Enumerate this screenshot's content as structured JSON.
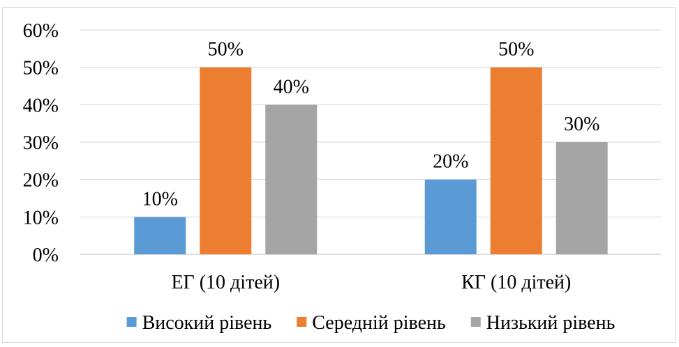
{
  "chart_data": {
    "type": "bar",
    "categories": [
      "ЕГ (10 дітей)",
      "КГ (10 дітей)"
    ],
    "series": [
      {
        "name": "Високий рівень",
        "values": [
          10,
          20
        ],
        "labels": [
          "10%",
          "20%"
        ],
        "color": "#5b9bd5"
      },
      {
        "name": "Середній рівень",
        "values": [
          50,
          50
        ],
        "labels": [
          "50%",
          "50%"
        ],
        "color": "#ed7d31"
      },
      {
        "name": "Низький рівень",
        "values": [
          40,
          30
        ],
        "labels": [
          "40%",
          "30%"
        ],
        "color": "#a5a5a5"
      }
    ],
    "ylim": [
      0,
      60
    ],
    "yticks": [
      0,
      10,
      20,
      30,
      40,
      50,
      60
    ],
    "ytick_labels": [
      "0%",
      "10%",
      "20%",
      "30%",
      "40%",
      "50%",
      "60%"
    ],
    "grid": true,
    "legend_position": "bottom",
    "title": "",
    "xlabel": "",
    "ylabel": ""
  }
}
